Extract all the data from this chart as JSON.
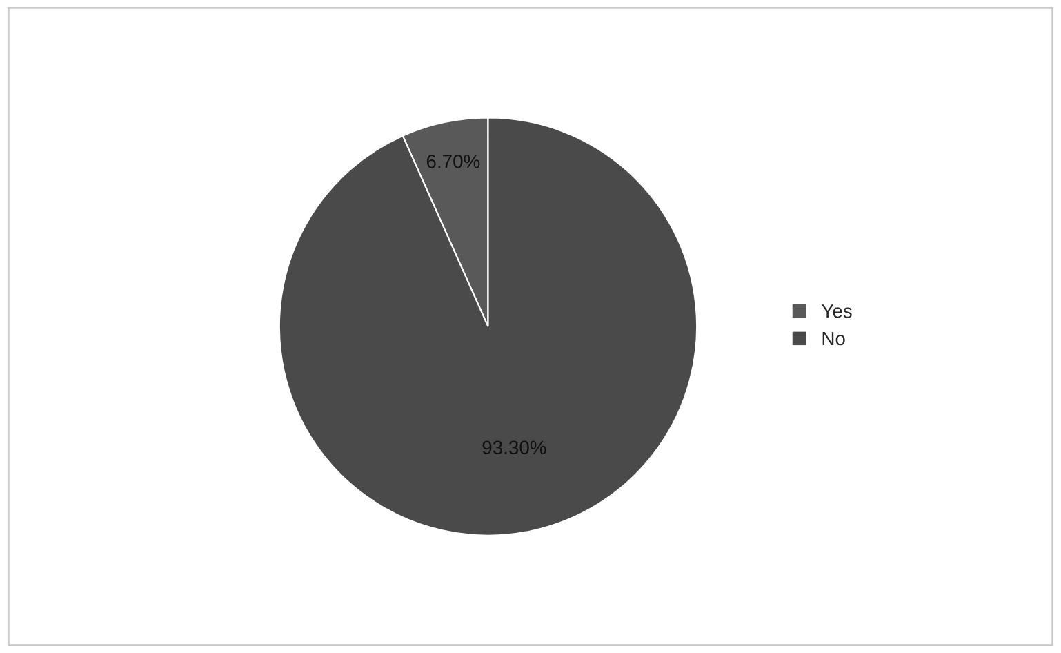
{
  "chart_data": {
    "type": "pie",
    "categories": [
      "Yes",
      "No"
    ],
    "values": [
      6.7,
      93.3
    ],
    "value_labels": [
      "6.70%",
      "93.30%"
    ],
    "colors": [
      "#595959",
      "#4a4a4a"
    ],
    "legend": "right"
  }
}
